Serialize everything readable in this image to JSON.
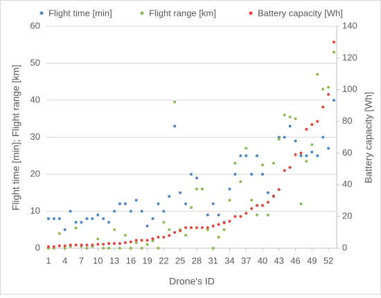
{
  "chart_data": {
    "type": "scatter",
    "xlabel": "Drone's ID",
    "ylabel": "Flight time [min]; Flight range [km]",
    "y2label": "Battery capacity [Wh]",
    "x": [
      1,
      2,
      3,
      4,
      5,
      6,
      7,
      8,
      9,
      10,
      11,
      12,
      13,
      14,
      15,
      16,
      17,
      18,
      19,
      20,
      21,
      22,
      23,
      24,
      25,
      26,
      27,
      28,
      29,
      30,
      31,
      32,
      33,
      34,
      35,
      36,
      37,
      38,
      39,
      40,
      41,
      42,
      43,
      44,
      45,
      46,
      47,
      48,
      49,
      50,
      51,
      52,
      53
    ],
    "series": [
      {
        "name": "Flight time [min]",
        "color": "#4a86c8",
        "values": [
          8,
          8,
          8,
          5,
          10,
          7,
          7,
          8,
          8,
          9,
          8,
          7,
          10,
          12,
          12,
          10,
          13,
          10,
          6,
          8,
          12,
          10,
          14,
          33,
          15,
          12,
          20,
          19,
          16,
          9,
          12,
          9,
          7,
          16,
          20,
          25,
          25,
          20,
          25,
          20,
          15,
          14,
          30,
          30,
          33,
          29,
          25,
          25,
          26,
          25,
          30,
          27,
          40
        ]
      },
      {
        "name": "Flight range [km]",
        "color": "#8dbb4f",
        "values": [
          0,
          0,
          4,
          0,
          0.5,
          5.5,
          0.5,
          0,
          0.5,
          2.5,
          0,
          0,
          5,
          0,
          3.5,
          0,
          1.5,
          0,
          1,
          2,
          0,
          7,
          5,
          39.5,
          5,
          3.5,
          11,
          16,
          16,
          5,
          0,
          3,
          5,
          13,
          23,
          18,
          27,
          13,
          9,
          22.5,
          9,
          23,
          29.5,
          36,
          35.5,
          35,
          12,
          23.5,
          28,
          47,
          43,
          43.5,
          53
        ]
      },
      {
        "name": "Battery capacity [Wh]",
        "color": "#e0453a",
        "axis": "y2",
        "values": [
          1,
          1,
          1.5,
          1.5,
          2,
          2,
          2,
          2,
          2,
          2.5,
          2.5,
          3,
          3,
          3,
          3.5,
          4,
          5,
          5,
          5,
          6,
          7,
          7,
          8,
          10,
          11,
          13,
          13,
          13,
          13,
          13,
          14,
          15,
          16,
          17,
          20,
          20,
          22,
          25,
          27,
          27,
          29,
          33,
          37,
          49,
          51,
          59,
          60,
          75,
          78,
          80,
          89,
          97,
          130
        ]
      }
    ],
    "xlim": [
      0.5,
      53.5
    ],
    "xticks": [
      1,
      4,
      7,
      10,
      13,
      16,
      19,
      22,
      25,
      28,
      31,
      34,
      37,
      40,
      43,
      46,
      49,
      52
    ],
    "ylim": [
      0,
      60
    ],
    "yticks": [
      0,
      10,
      20,
      30,
      40,
      50,
      60
    ],
    "y2lim": [
      0,
      140
    ],
    "y2ticks": [
      0,
      20,
      40,
      60,
      80,
      100,
      120,
      140
    ],
    "grid": true,
    "legend": "top"
  }
}
